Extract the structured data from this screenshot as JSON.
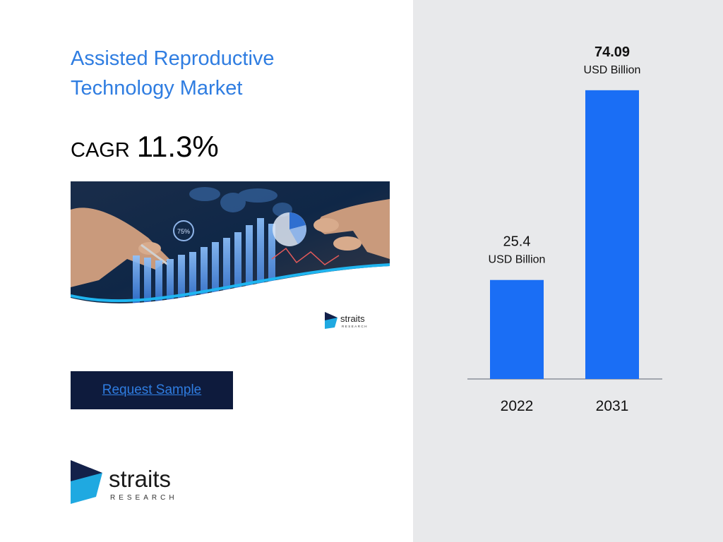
{
  "title_lines": [
    "Assisted Reproductive",
    "Technology Market"
  ],
  "cagr": {
    "label": "CAGR",
    "value": "11.3%"
  },
  "request_button": "Request Sample",
  "hero_logo": {
    "name": "straits",
    "sub": "RESEARCH"
  },
  "hero_badge": "75%",
  "brand": {
    "name": "straits",
    "sub": "RESEARCH"
  },
  "colors": {
    "title": "#2f7de1",
    "bar": "#1a6ef5",
    "button_bg": "#0e1b3d",
    "logo_dark": "#13214a",
    "logo_cyan": "#1fa9e1"
  },
  "chart_data": {
    "type": "bar",
    "categories": [
      "2022",
      "2031"
    ],
    "values": [
      25.4,
      74.09
    ],
    "value_labels": [
      "25.4",
      "74.09"
    ],
    "unit_label": "USD Billion",
    "ylim": [
      0,
      90
    ],
    "grid": false
  }
}
